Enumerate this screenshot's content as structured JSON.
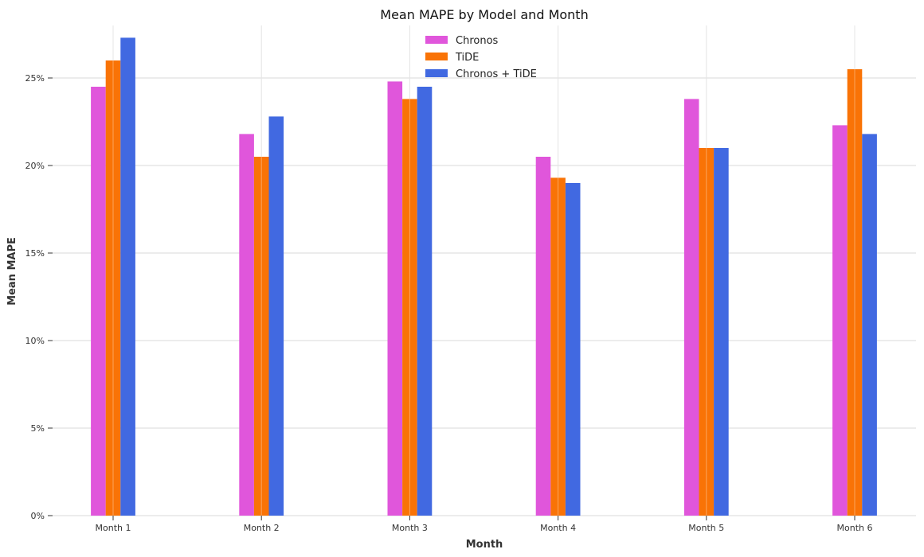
{
  "chart_data": {
    "type": "bar",
    "title": "Mean MAPE by Model and Month",
    "xlabel": "Month",
    "ylabel": "Mean MAPE",
    "categories": [
      "Month 1",
      "Month 2",
      "Month 3",
      "Month 4",
      "Month 5",
      "Month 6"
    ],
    "series": [
      {
        "name": "Chronos",
        "color": "#e056db",
        "values": [
          0.245,
          0.218,
          0.248,
          0.205,
          0.238,
          0.223
        ]
      },
      {
        "name": "TiDE",
        "color": "#f97306",
        "values": [
          0.26,
          0.205,
          0.238,
          0.193,
          0.21,
          0.255
        ]
      },
      {
        "name": "Chronos + TiDE",
        "color": "#4169e1",
        "values": [
          0.273,
          0.228,
          0.245,
          0.19,
          0.21,
          0.218
        ]
      }
    ],
    "ylim": [
      0,
      0.28
    ],
    "yticks": [
      0,
      0.05,
      0.1,
      0.15,
      0.2,
      0.25
    ],
    "ytick_labels": [
      "0%",
      "5%",
      "10%",
      "15%",
      "20%",
      "25%"
    ],
    "grid": true,
    "legend_position": "top-center"
  }
}
